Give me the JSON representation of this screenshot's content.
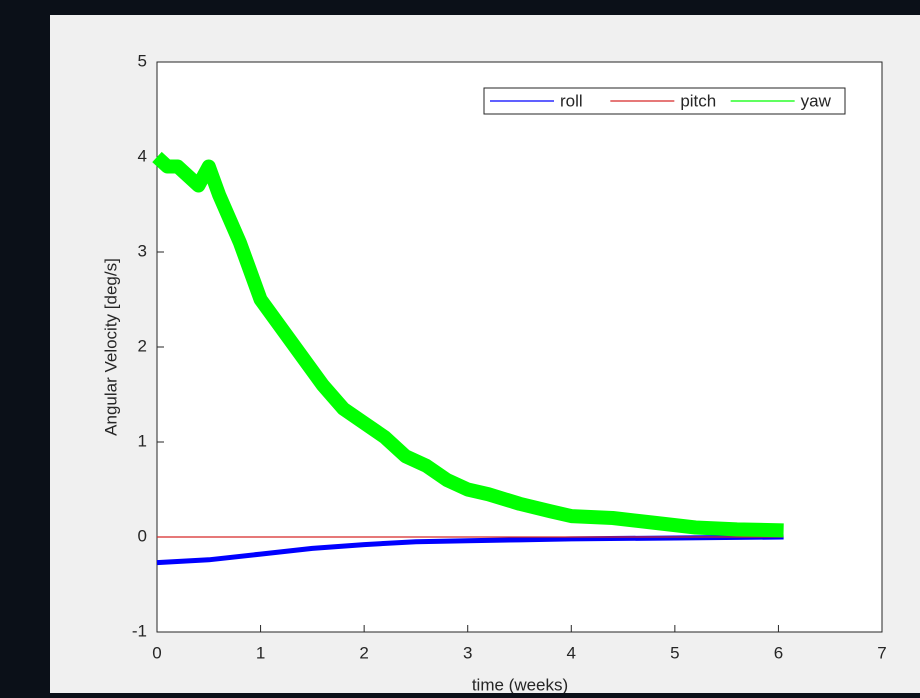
{
  "chart_data": {
    "type": "line",
    "xlabel": "time (weeks)",
    "ylabel": "Angular Velocity [deg/s]",
    "xlim": [
      0,
      7
    ],
    "xticks": [
      0,
      1,
      2,
      3,
      4,
      5,
      6,
      7
    ],
    "ylim": [
      -1,
      5
    ],
    "yticks": [
      -1,
      0,
      1,
      2,
      3,
      4,
      5
    ],
    "legend": "top-right",
    "series": [
      {
        "name": "roll",
        "color": "#0000ff",
        "x": [
          0,
          0.5,
          1,
          1.5,
          2,
          2.5,
          3,
          3.5,
          4,
          5,
          6.05
        ],
        "values": [
          -0.27,
          -0.24,
          -0.18,
          -0.12,
          -0.08,
          -0.05,
          -0.04,
          -0.03,
          -0.02,
          -0.01,
          0
        ]
      },
      {
        "name": "pitch",
        "color": "#d62728",
        "x": [
          0,
          6.05
        ],
        "values": [
          0,
          0
        ]
      },
      {
        "name": "yaw",
        "color": "#00ff00",
        "x": [
          0,
          0.1,
          0.2,
          0.3,
          0.4,
          0.5,
          0.6,
          0.8,
          1.0,
          1.2,
          1.4,
          1.6,
          1.8,
          2.0,
          2.2,
          2.4,
          2.6,
          2.8,
          3.0,
          3.2,
          3.5,
          3.8,
          4.0,
          4.4,
          4.8,
          5.2,
          5.6,
          6.05
        ],
        "values": [
          4.0,
          3.9,
          3.9,
          3.8,
          3.7,
          3.9,
          3.6,
          3.1,
          2.5,
          2.2,
          1.9,
          1.6,
          1.35,
          1.2,
          1.05,
          0.85,
          0.75,
          0.6,
          0.5,
          0.45,
          0.35,
          0.27,
          0.22,
          0.2,
          0.15,
          0.1,
          0.08,
          0.07
        ]
      }
    ]
  }
}
